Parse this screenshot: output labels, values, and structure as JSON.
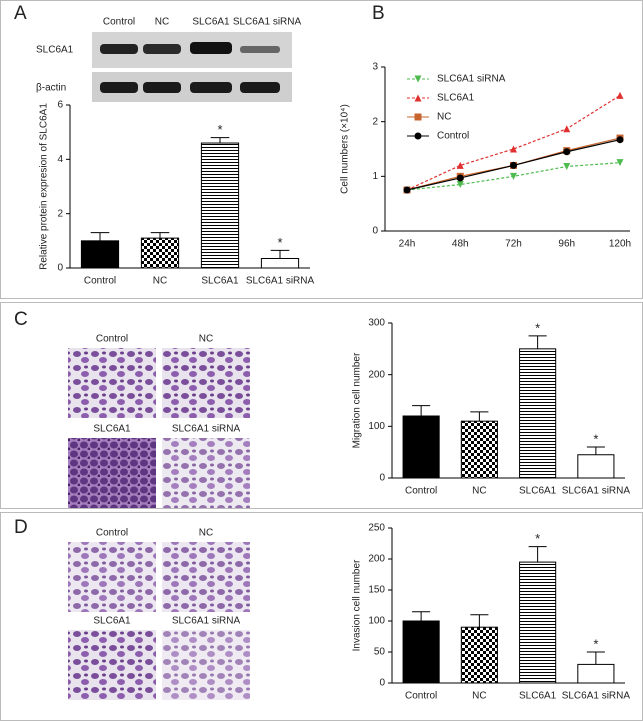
{
  "panel_labels": [
    "A",
    "B",
    "C",
    "D"
  ],
  "blot": {
    "lanes": [
      "Control",
      "NC",
      "SLC6A1",
      "SLC6A1 siRNA"
    ],
    "rows": [
      "SLC6A1",
      "β-actin"
    ]
  },
  "micrographs": {
    "C": [
      "Control",
      "NC",
      "SLC6A1",
      "SLC6A1 siRNA"
    ],
    "D": [
      "Control",
      "NC",
      "SLC6A1",
      "SLC6A1 siRNA"
    ]
  },
  "chart_data": [
    {
      "type": "bar",
      "ylabel": "Relative protein expresion of SLC6A1",
      "categories": [
        "Control",
        "NC",
        "SLC6A1",
        "SLC6A1 siRNA"
      ],
      "values": [
        1.0,
        1.1,
        4.6,
        0.35
      ],
      "error": [
        0.3,
        0.2,
        0.2,
        0.3
      ],
      "patterns": [
        "solid",
        "checker",
        "hlines",
        "empty"
      ],
      "color": "#000000",
      "ylim": [
        0,
        6
      ],
      "yticks": [
        0,
        2,
        4,
        6
      ],
      "annotations": [
        {
          "x": "SLC6A1",
          "text": "*"
        },
        {
          "x": "SLC6A1 siRNA",
          "text": "*"
        }
      ]
    },
    {
      "type": "line",
      "ylabel": "Cell numbers (×10⁴)",
      "categories": [
        "24h",
        "48h",
        "72h",
        "96h",
        "120h"
      ],
      "ylim": [
        0,
        3
      ],
      "yticks": [
        0,
        1,
        2,
        3
      ],
      "legend": "upper left",
      "series": [
        {
          "name": "SLC6A1 siRNA",
          "color": "#4dbb4d",
          "marker": "triangle-down",
          "linestyle": "dotted",
          "values": [
            0.75,
            0.85,
            1.0,
            1.18,
            1.25
          ]
        },
        {
          "name": "SLC6A1",
          "color": "#e03030",
          "marker": "triangle",
          "linestyle": "dotted",
          "values": [
            0.75,
            1.2,
            1.5,
            1.87,
            2.48
          ]
        },
        {
          "name": "NC",
          "color": "#c8642d",
          "marker": "square",
          "linestyle": "solid",
          "values": [
            0.75,
            1.0,
            1.2,
            1.47,
            1.7
          ]
        },
        {
          "name": "Control",
          "color": "#000000",
          "marker": "circle",
          "linestyle": "solid",
          "values": [
            0.75,
            0.97,
            1.2,
            1.45,
            1.67
          ]
        }
      ]
    },
    {
      "type": "bar",
      "ylabel": "Migration cell number",
      "categories": [
        "Control",
        "NC",
        "SLC6A1",
        "SLC6A1 siRNA"
      ],
      "values": [
        120,
        110,
        250,
        45
      ],
      "error": [
        20,
        18,
        25,
        15
      ],
      "patterns": [
        "solid",
        "checker",
        "hlines",
        "empty"
      ],
      "color": "#000000",
      "ylim": [
        0,
        300
      ],
      "yticks": [
        0,
        100,
        200,
        300
      ],
      "annotations": [
        {
          "x": "SLC6A1",
          "text": "*"
        },
        {
          "x": "SLC6A1 siRNA",
          "text": "*"
        }
      ]
    },
    {
      "type": "bar",
      "ylabel": "Invasion cell number",
      "categories": [
        "Control",
        "NC",
        "SLC6A1",
        "SLC6A1 siRNA"
      ],
      "values": [
        100,
        90,
        195,
        30
      ],
      "error": [
        15,
        20,
        25,
        20
      ],
      "patterns": [
        "solid",
        "checker",
        "hlines",
        "empty"
      ],
      "color": "#000000",
      "ylim": [
        0,
        250
      ],
      "yticks": [
        0,
        50,
        100,
        150,
        200,
        250
      ],
      "annotations": [
        {
          "x": "SLC6A1",
          "text": "*"
        },
        {
          "x": "SLC6A1 siRNA",
          "text": "*"
        }
      ]
    }
  ]
}
